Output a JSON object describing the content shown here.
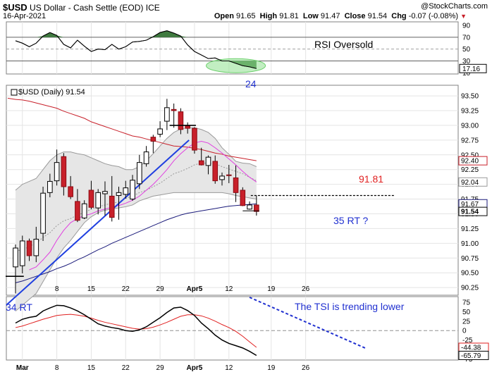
{
  "header": {
    "symbol": "$USD",
    "name": "US Dollar - Cash Settle (EOD) ICE",
    "brand": "@StockCharts.com",
    "date": "16-Apr-2021",
    "open_label": "Open",
    "open": "91.65",
    "high_label": "High",
    "high": "91.81",
    "low_label": "Low",
    "low": "91.47",
    "close_label": "Close",
    "close": "91.54",
    "chg_label": "Chg",
    "chg": "-0.07 (-0.08%)"
  },
  "colors": {
    "up": "#ffffff",
    "down": "#c8202a",
    "rsi_fill": "#3f7a3f",
    "bollinger_fill": "#e6e6e6",
    "ma_red": "#c8202a",
    "ma_navy": "#1a1a7a",
    "ma_magenta": "#e040e0",
    "trendline": "#2040e0",
    "tsi": "#000000",
    "tsi_signal": "#e02020",
    "annotation_blue": "#2030d0",
    "annotation_red": "#e02020"
  },
  "chart_data": [
    {
      "type": "line",
      "panel": "RSI",
      "title": "",
      "y_ticks": [
        10,
        30,
        50,
        70,
        90
      ],
      "ylim": [
        8,
        96
      ],
      "ref_lines": [
        30,
        50,
        70
      ],
      "last_value_label": "17.16",
      "x": [
        "2021-02-26",
        "2021-03-01",
        "2021-03-02",
        "2021-03-03",
        "2021-03-04",
        "2021-03-05",
        "2021-03-08",
        "2021-03-09",
        "2021-03-10",
        "2021-03-11",
        "2021-03-12",
        "2021-03-15",
        "2021-03-16",
        "2021-03-17",
        "2021-03-18",
        "2021-03-19",
        "2021-03-22",
        "2021-03-23",
        "2021-03-24",
        "2021-03-25",
        "2021-03-26",
        "2021-03-29",
        "2021-03-30",
        "2021-03-31",
        "2021-04-01",
        "2021-04-02",
        "2021-04-05",
        "2021-04-06",
        "2021-04-07",
        "2021-04-08",
        "2021-04-09",
        "2021-04-12",
        "2021-04-13",
        "2021-04-14",
        "2021-04-15",
        "2021-04-16"
      ],
      "values": [
        64,
        60,
        54,
        60,
        72,
        78,
        73,
        58,
        52,
        65,
        55,
        46,
        50,
        49,
        58,
        50,
        54,
        62,
        63,
        65,
        71,
        78,
        81,
        77,
        72,
        57,
        46,
        40,
        34,
        35,
        30,
        30,
        26,
        22,
        20,
        17.16
      ],
      "annotation": "RSI Oversold"
    },
    {
      "type": "candlestick",
      "panel": "price",
      "legend": "$USD (Daily) 91.54",
      "y_ticks": [
        90.25,
        90.5,
        90.75,
        91.0,
        91.25,
        91.5,
        91.75,
        92.0,
        92.25,
        92.5,
        92.75,
        93.0,
        93.25,
        93.5
      ],
      "ylim": [
        90.12,
        93.68
      ],
      "x_ticks": [
        "Mar",
        "8",
        "15",
        "22",
        "29",
        "Apr5",
        "12",
        "19",
        "26"
      ],
      "x_tick_dates": [
        "2021-03-01",
        "2021-03-08",
        "2021-03-15",
        "2021-03-22",
        "2021-03-29",
        "2021-04-05",
        "2021-04-12",
        "2021-04-19",
        "2021-04-26"
      ],
      "ohlc": [
        [
          "2021-02-26",
          90.6,
          90.98,
          90.15,
          90.92
        ],
        [
          "2021-03-01",
          90.62,
          91.13,
          90.49,
          91.04
        ],
        [
          "2021-03-02",
          91.04,
          91.08,
          90.7,
          90.79
        ],
        [
          "2021-03-03",
          90.79,
          91.28,
          90.68,
          91.07
        ],
        [
          "2021-03-04",
          91.17,
          91.96,
          91.04,
          91.85
        ],
        [
          "2021-03-05",
          91.86,
          92.18,
          91.78,
          92.05
        ],
        [
          "2021-03-08",
          92.06,
          92.59,
          91.98,
          92.37
        ],
        [
          "2021-03-09",
          92.47,
          92.53,
          91.81,
          91.96
        ],
        [
          "2021-03-10",
          91.96,
          92.14,
          91.75,
          91.79
        ],
        [
          "2021-03-11",
          91.71,
          91.92,
          91.36,
          91.39
        ],
        [
          "2021-03-12",
          91.43,
          91.73,
          91.41,
          91.67
        ],
        [
          "2021-03-15",
          91.9,
          92.06,
          91.58,
          91.61
        ],
        [
          "2021-03-16",
          91.6,
          91.92,
          91.49,
          91.86
        ],
        [
          "2021-03-17",
          91.84,
          92.05,
          91.47,
          91.88
        ],
        [
          "2021-03-18",
          91.8,
          92.14,
          91.37,
          91.44
        ],
        [
          "2021-03-19",
          91.81,
          91.96,
          91.4,
          91.86
        ],
        [
          "2021-03-22",
          91.83,
          92.06,
          91.76,
          91.94
        ],
        [
          "2021-03-23",
          91.75,
          92.16,
          91.72,
          92.07
        ],
        [
          "2021-03-24",
          92.01,
          92.5,
          91.92,
          92.37
        ],
        [
          "2021-03-25",
          92.35,
          92.65,
          92.3,
          92.55
        ],
        [
          "2021-03-26",
          92.8,
          92.84,
          92.53,
          92.73
        ],
        [
          "2021-03-29",
          92.85,
          93.07,
          92.8,
          92.94
        ],
        [
          "2021-03-30",
          93.07,
          93.45,
          92.92,
          93.3
        ],
        [
          "2021-03-31",
          93.27,
          93.37,
          92.96,
          93.25
        ],
        [
          "2021-04-01",
          93.23,
          93.29,
          92.85,
          92.93
        ],
        [
          "2021-04-02",
          92.99,
          93.05,
          92.86,
          92.95
        ],
        [
          "2021-04-05",
          92.95,
          92.97,
          92.52,
          92.58
        ],
        [
          "2021-04-06",
          92.4,
          92.62,
          92.32,
          92.33
        ],
        [
          "2021-04-07",
          92.32,
          92.49,
          92.17,
          92.46
        ],
        [
          "2021-04-08",
          92.39,
          92.49,
          92.01,
          92.06
        ],
        [
          "2021-04-09",
          92.08,
          92.2,
          91.98,
          92.14
        ],
        [
          "2021-04-12",
          92.16,
          92.33,
          92.02,
          92.15
        ],
        [
          "2021-04-13",
          92.11,
          92.32,
          91.7,
          91.86
        ],
        [
          "2021-04-14",
          91.9,
          91.95,
          91.63,
          91.64
        ],
        [
          "2021-04-15",
          91.58,
          91.71,
          91.57,
          91.65
        ],
        [
          "2021-04-16",
          91.65,
          91.81,
          91.47,
          91.54
        ]
      ],
      "bollinger_upper": [
        91.9,
        92.0,
        92.05,
        92.1,
        92.25,
        92.4,
        92.5,
        92.55,
        92.55,
        92.52,
        92.5,
        92.45,
        92.4,
        92.35,
        92.32,
        92.3,
        92.25,
        92.25,
        92.3,
        92.4,
        92.52,
        92.65,
        92.78,
        92.88,
        92.94,
        92.96,
        92.96,
        92.93,
        92.88,
        92.78,
        92.62,
        92.51,
        92.39,
        92.36,
        92.35,
        92.3
      ],
      "bollinger_mid": [
        90.88,
        90.88,
        90.95,
        91.0,
        91.1,
        91.18,
        91.3,
        91.38,
        91.42,
        91.48,
        91.52,
        91.58,
        91.62,
        91.65,
        91.68,
        91.7,
        91.76,
        91.8,
        91.86,
        91.9,
        91.96,
        92.02,
        92.1,
        92.18,
        92.22,
        92.27,
        92.33,
        92.36,
        92.36,
        92.35,
        92.3,
        92.26,
        92.22,
        92.18,
        92.12,
        92.06
      ],
      "bollinger_lower": [
        89.85,
        89.95,
        90.05,
        90.15,
        90.35,
        90.55,
        90.75,
        90.92,
        91.05,
        91.2,
        91.35,
        91.45,
        91.52,
        91.56,
        91.58,
        91.6,
        91.62,
        91.65,
        91.72,
        91.76,
        91.8,
        91.82,
        91.84,
        91.86,
        91.86,
        91.86,
        91.86,
        91.86,
        91.86,
        91.86,
        91.86,
        91.84,
        91.81,
        91.79,
        91.77,
        91.75
      ],
      "ma_red": [
        93.44,
        93.43,
        93.41,
        93.38,
        93.35,
        93.32,
        93.29,
        93.24,
        93.2,
        93.16,
        93.12,
        93.06,
        93.02,
        92.98,
        92.94,
        92.9,
        92.86,
        92.82,
        92.8,
        92.77,
        92.74,
        92.71,
        92.68,
        92.65,
        92.64,
        92.63,
        92.61,
        92.59,
        92.56,
        92.53,
        92.51,
        92.48,
        92.46,
        92.44,
        92.42,
        92.4
      ],
      "ma_navy": [
        90.33,
        90.36,
        90.4,
        90.44,
        90.48,
        90.52,
        90.57,
        90.61,
        90.66,
        90.72,
        90.77,
        90.83,
        90.89,
        90.94,
        91.0,
        91.05,
        91.1,
        91.15,
        91.2,
        91.25,
        91.3,
        91.35,
        91.4,
        91.44,
        91.48,
        91.51,
        91.53,
        91.55,
        91.57,
        91.59,
        91.61,
        91.63,
        91.64,
        91.65,
        91.66,
        91.67
      ],
      "ma_magenta": [
        null,
        null,
        90.55,
        90.6,
        90.72,
        90.85,
        91.05,
        91.22,
        91.35,
        91.42,
        91.47,
        91.5,
        91.55,
        91.58,
        91.61,
        91.64,
        91.68,
        91.73,
        91.8,
        91.9,
        92.0,
        92.12,
        92.25,
        92.4,
        92.52,
        92.62,
        92.7,
        92.73,
        92.7,
        92.62,
        92.53,
        92.43,
        92.33,
        92.22,
        92.12,
        92.04
      ],
      "right_labels": [
        "92.40",
        "92.04",
        "91.67",
        "91.54"
      ],
      "annotations": {
        "high_marker": "24",
        "resistance": "91.81",
        "target": "35 RT ?",
        "start": "34 RT"
      }
    },
    {
      "type": "line",
      "panel": "TSI",
      "title": "",
      "y_ticks": [
        75,
        50,
        25,
        0,
        -25,
        -50,
        -75
      ],
      "ylim": [
        -78,
        90
      ],
      "ref_lines": [
        0
      ],
      "tsi_values": [
        20,
        30,
        35,
        38,
        52,
        60,
        67,
        66,
        60,
        52,
        42,
        30,
        18,
        12,
        8,
        5,
        0,
        -2,
        2,
        10,
        22,
        34,
        48,
        60,
        62,
        53,
        40,
        20,
        5,
        -12,
        -25,
        -34,
        -40,
        -46,
        -55,
        -65.79
      ],
      "signal_values": [
        8,
        12,
        18,
        24,
        30,
        35,
        40,
        42,
        43,
        41,
        38,
        33,
        27,
        22,
        18,
        14,
        10,
        6,
        4,
        5,
        9,
        15,
        22,
        30,
        38,
        42,
        42,
        39,
        33,
        25,
        16,
        8,
        -2,
        -15,
        -30,
        -44.38
      ],
      "last_value_labels": [
        "-44.38",
        "-65.79"
      ],
      "annotation": "The TSI is trending lower"
    }
  ]
}
